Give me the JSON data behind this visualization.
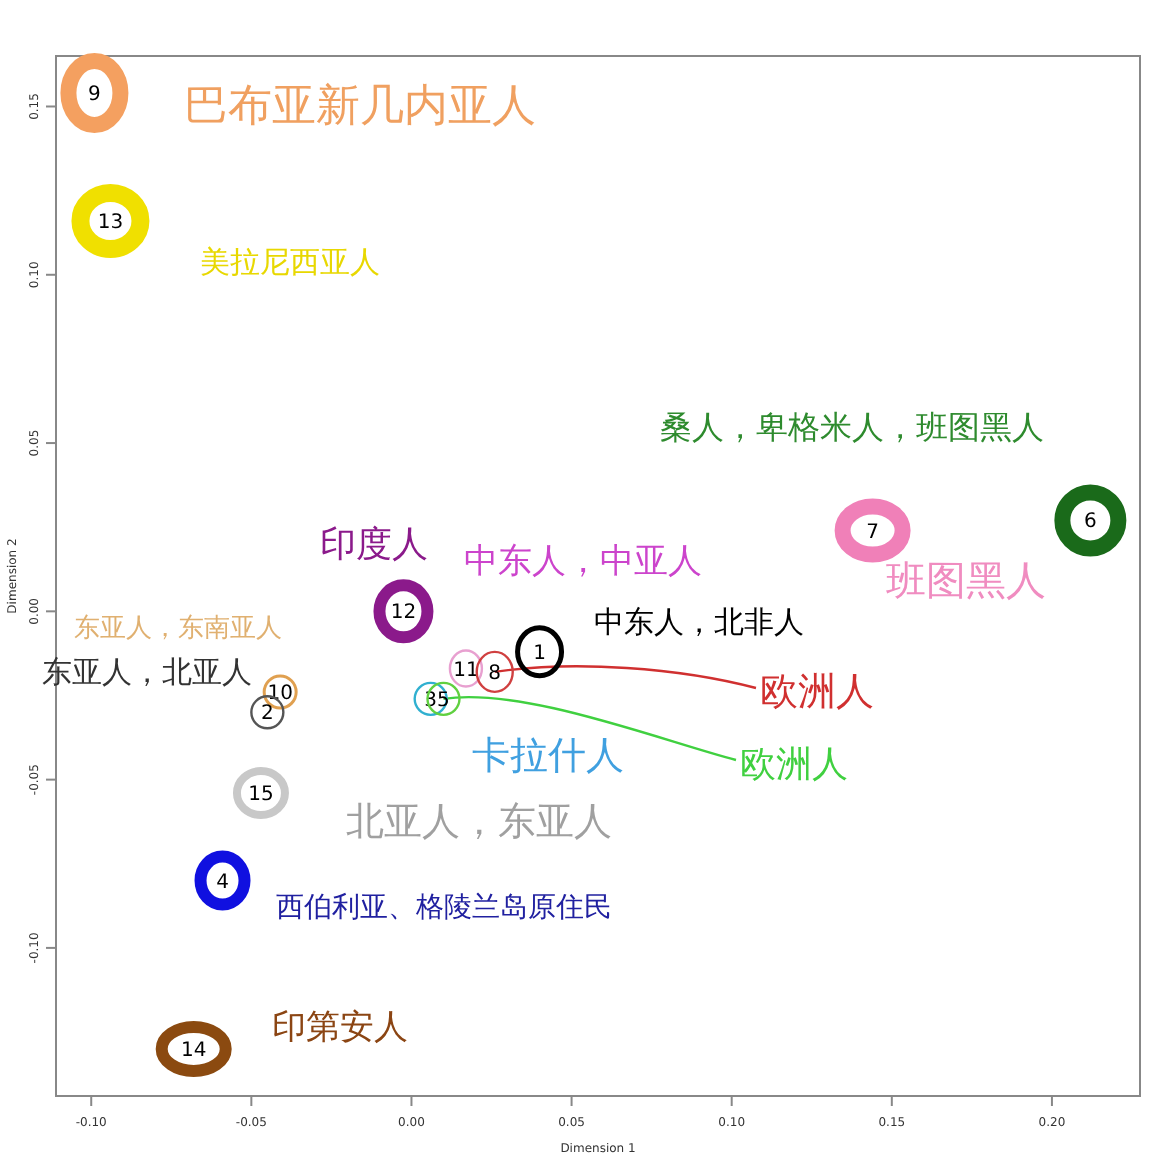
{
  "chart_data": {
    "type": "scatter",
    "xlabel": "Dimension 1",
    "ylabel": "Dimension 2",
    "xlim": [
      -0.111,
      0.2275
    ],
    "ylim": [
      -0.144,
      0.165
    ],
    "xticks": [
      {
        "value": -0.1,
        "label": "-0.10"
      },
      {
        "value": -0.05,
        "label": "-0.05"
      },
      {
        "value": 0,
        "label": "0.00"
      },
      {
        "value": 0.05,
        "label": "0.05"
      },
      {
        "value": 0.1,
        "label": "0.10"
      },
      {
        "value": 0.15,
        "label": "0.15"
      },
      {
        "value": 0.2,
        "label": "0.20"
      }
    ],
    "yticks": [
      {
        "value": -0.1,
        "label": "-0.10"
      },
      {
        "value": -0.05,
        "label": "-0.05"
      },
      {
        "value": 0,
        "label": "0.00"
      },
      {
        "value": 0.05,
        "label": "0.05"
      },
      {
        "value": 0.1,
        "label": "0.10"
      },
      {
        "value": 0.15,
        "label": "0.15"
      }
    ],
    "grid": false,
    "marker": "circle",
    "series": [
      {
        "name": "9",
        "color": "#f4a060",
        "x": [
          -0.099
        ],
        "values": [
          0.154
        ]
      },
      {
        "name": "13",
        "color": "#f0e000",
        "x": [
          -0.094
        ],
        "values": [
          0.116
        ]
      },
      {
        "name": "12",
        "color": "#8b1a8b",
        "x": [
          -0.0025
        ],
        "values": [
          0.0
        ]
      },
      {
        "name": "10",
        "color": "#e0a050",
        "x": [
          -0.041
        ],
        "values": [
          -0.024
        ]
      },
      {
        "name": "2",
        "color": "#555555",
        "x": [
          -0.045
        ],
        "values": [
          -0.03
        ]
      },
      {
        "name": "15",
        "color": "#c8c8c8",
        "x": [
          -0.047
        ],
        "values": [
          -0.054
        ]
      },
      {
        "name": "4",
        "color": "#1010e0",
        "x": [
          -0.059
        ],
        "values": [
          -0.08
        ]
      },
      {
        "name": "14",
        "color": "#8b4a10",
        "x": [
          -0.068
        ],
        "values": [
          -0.13
        ]
      },
      {
        "name": "3",
        "color": "#30b0d0",
        "x": [
          0.006
        ],
        "values": [
          -0.026
        ]
      },
      {
        "name": "5",
        "color": "#60d040",
        "x": [
          0.01
        ],
        "values": [
          -0.026
        ]
      },
      {
        "name": "11",
        "color": "#e8a0d0",
        "x": [
          0.017
        ],
        "values": [
          -0.017
        ]
      },
      {
        "name": "8",
        "color": "#d04040",
        "x": [
          0.026
        ],
        "values": [
          -0.018
        ]
      },
      {
        "name": "1",
        "color": "#000000",
        "x": [
          0.04
        ],
        "values": [
          -0.012
        ]
      },
      {
        "name": "7",
        "color": "#f080b8",
        "x": [
          0.144
        ],
        "values": [
          0.024
        ]
      },
      {
        "name": "6",
        "color": "#1a6a1a",
        "x": [
          0.212
        ],
        "values": [
          0.027
        ]
      }
    ],
    "annotations": [
      "巴布亚新几内亚人",
      "美拉尼西亚人",
      "桑人，卑格米人，班图黑人",
      "印度人",
      "中东人，中亚人",
      "中东人，北非人",
      "班图黑人",
      "东亚人，东南亚人",
      "东亚人，北亚人",
      {
        "text": "欧洲人",
        "x": 0.026,
        "y": -0.018
      },
      "卡拉什人",
      {
        "text": "欧洲人",
        "x": 0.01,
        "y": -0.026
      },
      "北亚人，东亚人",
      "西伯利亚、格陵兰岛原住民",
      "印第安人"
    ]
  }
}
